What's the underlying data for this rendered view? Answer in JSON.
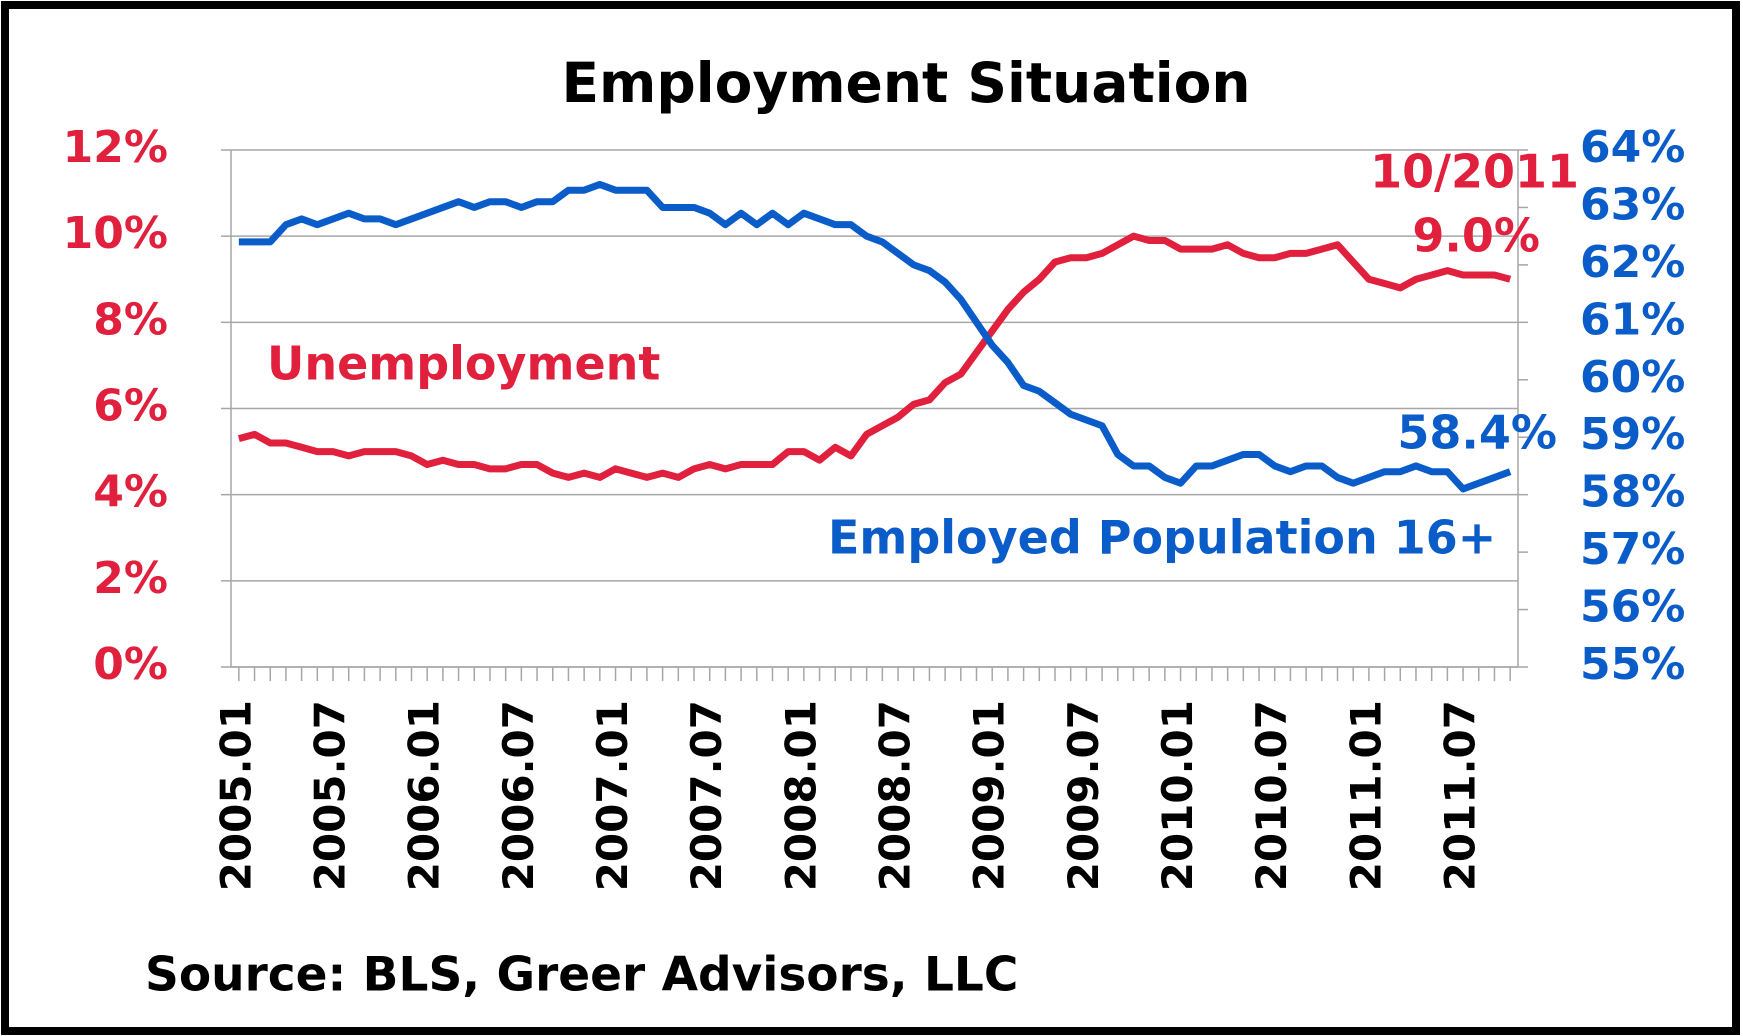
{
  "chart_data": {
    "type": "line",
    "title": "Employment Situation",
    "source": "Source: BLS, Greer Advisors, LLC",
    "categories": [
      "2005.01",
      null,
      null,
      null,
      null,
      null,
      "2005.07",
      null,
      null,
      null,
      null,
      null,
      "2006.01",
      null,
      null,
      null,
      null,
      null,
      "2006.07",
      null,
      null,
      null,
      null,
      null,
      "2007.01",
      null,
      null,
      null,
      null,
      null,
      "2007.07",
      null,
      null,
      null,
      null,
      null,
      "2008.01",
      null,
      null,
      null,
      null,
      null,
      "2008.07",
      null,
      null,
      null,
      null,
      null,
      "2009.01",
      null,
      null,
      null,
      null,
      null,
      "2009.07",
      null,
      null,
      null,
      null,
      null,
      "2010.01",
      null,
      null,
      null,
      null,
      null,
      "2010.07",
      null,
      null,
      null,
      null,
      null,
      "2011.01",
      null,
      null,
      null,
      null,
      null,
      "2011.07",
      null,
      null,
      null
    ],
    "series": [
      {
        "name": "Unemployment",
        "color": "#e0203c",
        "axis": "y",
        "values": [
          5.3,
          5.4,
          5.2,
          5.2,
          5.1,
          5.0,
          5.0,
          4.9,
          5.0,
          5.0,
          5.0,
          4.9,
          4.7,
          4.8,
          4.7,
          4.7,
          4.6,
          4.6,
          4.7,
          4.7,
          4.5,
          4.4,
          4.5,
          4.4,
          4.6,
          4.5,
          4.4,
          4.5,
          4.4,
          4.6,
          4.7,
          4.6,
          4.7,
          4.7,
          4.7,
          5.0,
          5.0,
          4.8,
          5.1,
          4.9,
          5.4,
          5.6,
          5.8,
          6.1,
          6.2,
          6.6,
          6.8,
          7.3,
          7.8,
          8.3,
          8.7,
          9.0,
          9.4,
          9.5,
          9.5,
          9.6,
          9.8,
          10.0,
          9.9,
          9.9,
          9.7,
          9.7,
          9.7,
          9.8,
          9.6,
          9.5,
          9.5,
          9.6,
          9.6,
          9.7,
          9.8,
          9.4,
          9.0,
          8.9,
          8.8,
          9.0,
          9.1,
          9.2,
          9.1,
          9.1,
          9.1,
          9.0
        ]
      },
      {
        "name": "Employed Population 16+",
        "color": "#0a5cc8",
        "axis": "y2",
        "values": [
          62.4,
          62.4,
          62.4,
          62.7,
          62.8,
          62.7,
          62.8,
          62.9,
          62.8,
          62.8,
          62.7,
          62.8,
          62.9,
          63.0,
          63.1,
          63.0,
          63.1,
          63.1,
          63.0,
          63.1,
          63.1,
          63.3,
          63.3,
          63.4,
          63.3,
          63.3,
          63.3,
          63.0,
          63.0,
          63.0,
          62.9,
          62.7,
          62.9,
          62.7,
          62.9,
          62.7,
          62.9,
          62.8,
          62.7,
          62.7,
          62.5,
          62.4,
          62.2,
          62.0,
          61.9,
          61.7,
          61.4,
          61.0,
          60.6,
          60.3,
          59.9,
          59.8,
          59.6,
          59.4,
          59.3,
          59.2,
          58.7,
          58.5,
          58.5,
          58.3,
          58.2,
          58.5,
          58.5,
          58.6,
          58.7,
          58.7,
          58.5,
          58.4,
          58.5,
          58.5,
          58.3,
          58.2,
          58.3,
          58.4,
          58.4,
          58.5,
          58.4,
          58.4,
          58.1,
          58.2,
          58.3,
          58.4
        ]
      }
    ],
    "annotations": [
      "10/2011",
      "9.0%",
      "58.4%"
    ],
    "ylim": [
      0,
      12
    ],
    "yticks": [
      {
        "value": 0,
        "label": "0%"
      },
      {
        "value": 2,
        "label": "2%"
      },
      {
        "value": 4,
        "label": "4%"
      },
      {
        "value": 6,
        "label": "6%"
      },
      {
        "value": 8,
        "label": "8%"
      },
      {
        "value": 10,
        "label": "10%"
      },
      {
        "value": 12,
        "label": "12%"
      }
    ],
    "y2lim": [
      55,
      64
    ],
    "y2ticks": [
      {
        "value": 55,
        "label": "55%"
      },
      {
        "value": 56,
        "label": "56%"
      },
      {
        "value": 57,
        "label": "57%"
      },
      {
        "value": 58,
        "label": "58%"
      },
      {
        "value": 59,
        "label": "59%"
      },
      {
        "value": 60,
        "label": "60%"
      },
      {
        "value": 61,
        "label": "61%"
      },
      {
        "value": 62,
        "label": "62%"
      },
      {
        "value": 63,
        "label": "63%"
      },
      {
        "value": 64,
        "label": "64%"
      }
    ],
    "grid": true
  }
}
